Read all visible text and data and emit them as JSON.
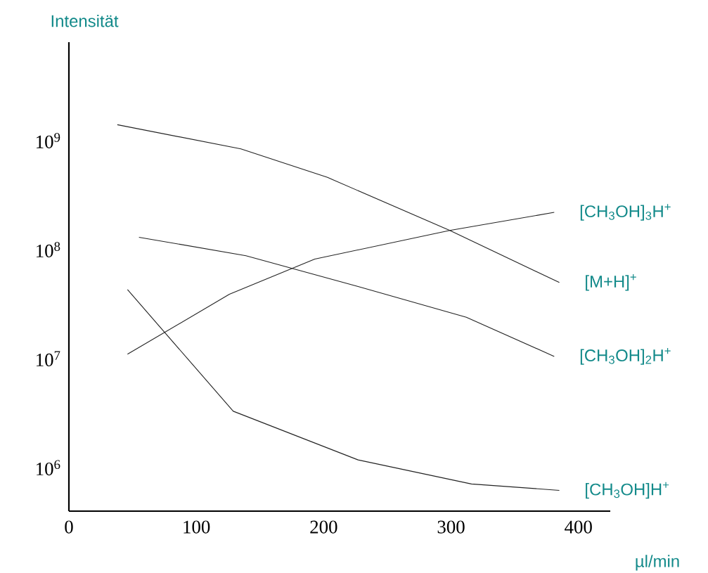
{
  "chart_data": {
    "type": "line",
    "xlabel": "µl/min",
    "ylabel": "Intensität",
    "log": true,
    "xlim": [
      0,
      425
    ],
    "ylim": [
      400000,
      8000000000
    ],
    "xticks": [
      0,
      100,
      200,
      300,
      400
    ],
    "yticks": [
      {
        "value": 1000000,
        "label": "10$^{6}$"
      },
      {
        "value": 10000000,
        "label": "10$^{7}$"
      },
      {
        "value": 100000000,
        "label": "10$^{8}$"
      },
      {
        "value": 1000000000,
        "label": "10$^{9}$"
      }
    ],
    "grid": false,
    "marker": "none",
    "line_style": "solid",
    "series": [
      {
        "name": "[M+H]$^{+}$",
        "color": "#222222",
        "x": [
          38,
          135,
          203,
          299,
          385
        ],
        "values": [
          1400000000,
          840000000,
          460000000,
          150000000,
          50000000
        ]
      },
      {
        "name": "[CH$_{3}$OH]$_{3}$H$^{+}$",
        "color": "#222222",
        "x": [
          46,
          126,
          193,
          299,
          381
        ],
        "values": [
          11000000,
          39000000,
          82000000,
          150000000,
          220000000
        ]
      },
      {
        "name": "[CH$_{3}$OH]$_{2}$H$^{+}$",
        "color": "#222222",
        "x": [
          55,
          139,
          227,
          312,
          381
        ],
        "values": [
          130000000,
          88000000,
          46000000,
          24000000,
          10500000
        ]
      },
      {
        "name": "[CH$_{3}$OH]H$^{+}$",
        "color": "#222222",
        "x": [
          46,
          129,
          227,
          316,
          385
        ],
        "values": [
          43000000,
          3300000,
          1180000,
          710000,
          620000
        ]
      }
    ]
  }
}
